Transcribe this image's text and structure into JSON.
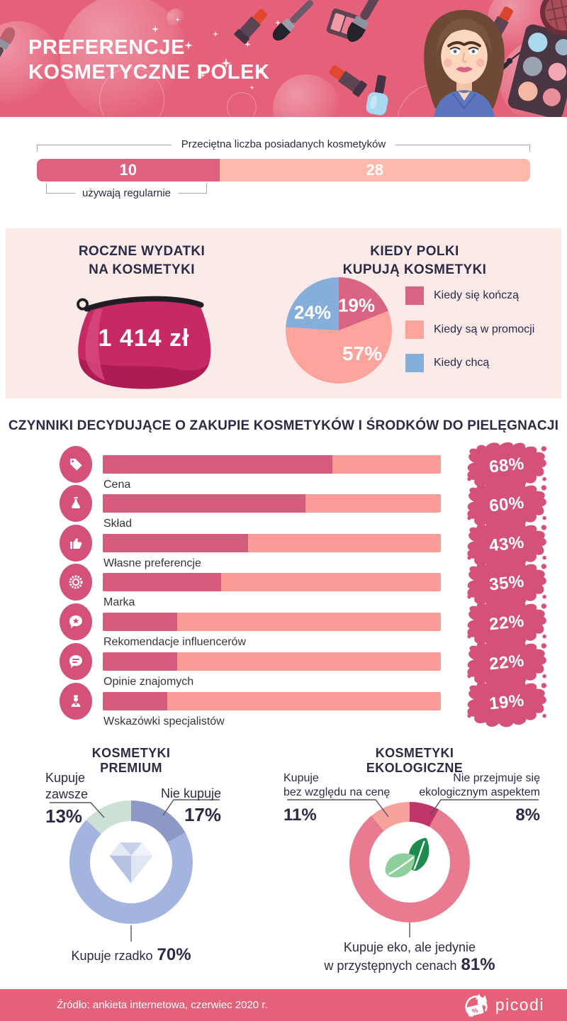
{
  "header": {
    "title_line1": "PREFERENCJE",
    "title_line2": "KOSMETYCZNE POLEK",
    "bg_color": "#e5617a"
  },
  "owned": {
    "bracket_label": "Przeciętna liczba posiadanych kosmetyków",
    "segments": [
      {
        "label": "używają regularnie",
        "value": "10",
        "color": "#de6280",
        "display_pct": 37
      },
      {
        "label": "",
        "value": "28",
        "color": "#feb9ab",
        "display_pct": 63
      }
    ]
  },
  "spending": {
    "title_line1": "ROCZNE WYDATKI",
    "title_line2": "NA KOSMETYKI",
    "amount": "1 414 zł"
  },
  "when_buy": {
    "title_line1": "KIEDY POLKI",
    "title_line2": "KUPUJĄ KOSMETYKI",
    "slices": [
      {
        "label": "Kiedy się kończą",
        "pct": 19,
        "pct_label": "19%",
        "color": "#d96383"
      },
      {
        "label": "Kiedy są w promocji",
        "pct": 57,
        "pct_label": "57%",
        "color": "#fba49c"
      },
      {
        "label": "Kiedy chcą",
        "pct": 24,
        "pct_label": "24%",
        "color": "#85aedb"
      }
    ]
  },
  "factors": {
    "title": "CZYNNIKI DECYDUJĄCE O ZAKUPIE KOSMETYKÓW I ŚRODKÓW DO PIELĘGNACJI",
    "rows": [
      {
        "label": "Cena",
        "pct": 68,
        "pct_label": "68%",
        "icon": "price-tag"
      },
      {
        "label": "Skład",
        "pct": 60,
        "pct_label": "60%",
        "icon": "flask"
      },
      {
        "label": "Własne preferencje",
        "pct": 43,
        "pct_label": "43%",
        "icon": "thumbs-up"
      },
      {
        "label": "Marka",
        "pct": 35,
        "pct_label": "35%",
        "icon": "badge"
      },
      {
        "label": "Rekomendacje influencerów",
        "pct": 22,
        "pct_label": "22%",
        "icon": "star-bubble"
      },
      {
        "label": "Opinie znajomych",
        "pct": 22,
        "pct_label": "22%",
        "icon": "chat-bubble"
      },
      {
        "label": "Wskazówki specjalistów",
        "pct": 19,
        "pct_label": "19%",
        "icon": "specialist"
      }
    ]
  },
  "premium": {
    "title": "KOSMETYKI PREMIUM",
    "slices": [
      {
        "label": "Nie kupuje",
        "pct": 17,
        "pct_label": "17%",
        "color": "#8c98c6"
      },
      {
        "label": "Kupuje rzadko",
        "pct": 70,
        "pct_label": "70%",
        "color": "#a3b5de"
      },
      {
        "label": "Kupuje zawsze",
        "pct": 13,
        "pct_label": "13%",
        "color": "#cce0d4",
        "label_line1": "Kupuje",
        "label_line2": "zawsze"
      }
    ]
  },
  "eco": {
    "title": "KOSMETYKI EKOLOGICZNE",
    "slices": [
      {
        "label": "Nie przejmuje się ekologicznym aspektem",
        "pct": 8,
        "pct_label": "8%",
        "color": "#c23568",
        "label_line1": "Nie przejmuje się",
        "label_line2": "ekologicznym aspektem"
      },
      {
        "label": "Kupuje eko, ale jedynie w przystępnych cenach",
        "pct": 81,
        "pct_label": "81%",
        "color": "#e87b90",
        "label_line1": "Kupuje eko, ale jedynie",
        "label_line2": "w przystępnych cenach"
      },
      {
        "label": "Kupuje bez względu na cenę",
        "pct": 11,
        "pct_label": "11%",
        "color": "#f6a29b",
        "label_line1": "Kupuje",
        "label_line2": "bez względu na cenę"
      }
    ]
  },
  "footer": {
    "source": "Źródło: ankieta internetowa, czerwiec 2020 r.",
    "brand": "picodi",
    "bg_color": "#e5617a"
  },
  "chart_data": [
    {
      "type": "bar",
      "title": "Przeciętna liczba posiadanych kosmetyków",
      "categories": [
        "używają regularnie",
        ""
      ],
      "values": [
        10,
        28
      ]
    },
    {
      "type": "stat",
      "title": "Roczne wydatki na kosmetyki",
      "value": "1 414 zł"
    },
    {
      "type": "pie",
      "title": "Kiedy Polki kupują kosmetyki",
      "labels": [
        "Kiedy się kończą",
        "Kiedy są w promocji",
        "Kiedy chcą"
      ],
      "values": [
        19,
        57,
        24
      ],
      "colors": [
        "#d96383",
        "#fba49c",
        "#85aedb"
      ],
      "legend_position": "right"
    },
    {
      "type": "bar",
      "title": "Czynniki decydujące o zakupie kosmetyków i środków do pielęgnacji",
      "categories": [
        "Cena",
        "Skład",
        "Własne preferencje",
        "Marka",
        "Rekomendacje influencerów",
        "Opinie znajomych",
        "Wskazówki specjalistów"
      ],
      "values": [
        68,
        60,
        43,
        35,
        22,
        22,
        19
      ],
      "unit": "%",
      "xlim": [
        0,
        100
      ]
    },
    {
      "type": "pie",
      "subtype": "donut",
      "title": "Kosmetyki premium",
      "labels": [
        "Nie kupuje",
        "Kupuje rzadko",
        "Kupuje zawsze"
      ],
      "values": [
        17,
        70,
        13
      ],
      "colors": [
        "#8c98c6",
        "#a3b5de",
        "#cce0d4"
      ]
    },
    {
      "type": "pie",
      "subtype": "donut",
      "title": "Kosmetyki ekologiczne",
      "labels": [
        "Nie przejmuje się ekologicznym aspektem",
        "Kupuje eko, ale jedynie w przystępnych cenach",
        "Kupuje bez względu na cenę"
      ],
      "values": [
        8,
        81,
        11
      ],
      "colors": [
        "#c23568",
        "#e87b90",
        "#f6a29b"
      ]
    }
  ]
}
